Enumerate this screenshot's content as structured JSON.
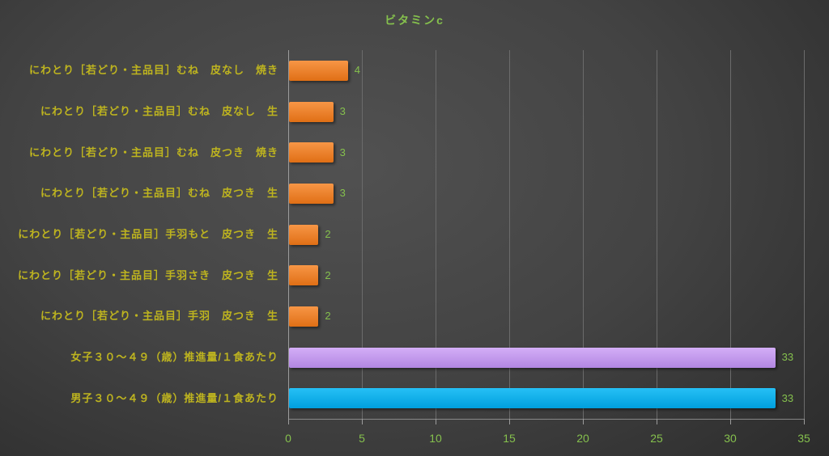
{
  "chart_data": {
    "type": "bar",
    "orientation": "horizontal",
    "title": "ビタミンc",
    "categories": [
      "にわとり［若どり・主品目］むね　皮なし　焼き",
      "にわとり［若どり・主品目］むね　皮なし　生",
      "にわとり［若どり・主品目］むね　皮つき　焼き",
      "にわとり［若どり・主品目］むね　皮つき　生",
      "にわとり［若どり・主品目］手羽もと　皮つき　生",
      "にわとり［若どり・主品目］手羽さき　皮つき　生",
      "にわとり［若どり・主品目］手羽　皮つき　生",
      "女子３０～４９（歳）推進量/１食あたり",
      "男子３０～４９（歳）推進量/１食あたり"
    ],
    "values": [
      4,
      3,
      3,
      3,
      2,
      2,
      2,
      33,
      33
    ],
    "value_labels": [
      "4",
      "3",
      "3",
      "3",
      "2",
      "2",
      "2",
      "33",
      "33"
    ],
    "series_color_keys": [
      "orange",
      "orange",
      "orange",
      "orange",
      "orange",
      "orange",
      "orange",
      "purple",
      "blue"
    ],
    "palette": {
      "orange": {
        "top": "#f79646",
        "bottom": "#e06f15"
      },
      "purple": {
        "top": "#d4aef7",
        "bottom": "#b286e2"
      },
      "blue": {
        "top": "#26c0f5",
        "bottom": "#009fde"
      }
    },
    "xlabel": "",
    "ylabel": "",
    "xlim": [
      0,
      35
    ],
    "xticks": [
      0,
      5,
      10,
      15,
      20,
      25,
      30,
      35
    ],
    "grid": true,
    "legend": false,
    "colors": {
      "title": "#85c04d",
      "tick_labels": "#85c04d",
      "value_labels": "#85c04d",
      "category_labels": "#beb41f",
      "gridline": "#6b6b6b",
      "axis": "#9c9c9c",
      "background_center": "#515151",
      "background_edge": "#2b2b2b"
    }
  }
}
